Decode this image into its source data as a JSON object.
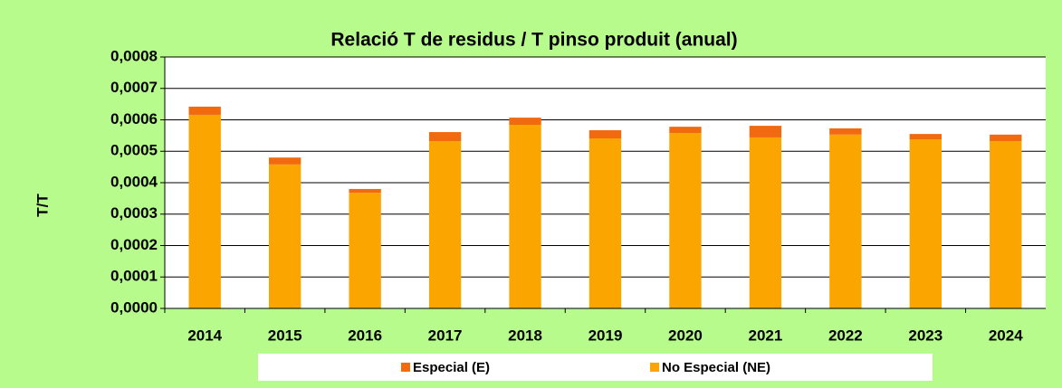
{
  "chart_data": {
    "type": "bar",
    "stacked": true,
    "title": "Relació T de residus / T pinso produit (anual)",
    "y_label": "T/T",
    "categories": [
      "2014",
      "2015",
      "2016",
      "2017",
      "2018",
      "2019",
      "2020",
      "2021",
      "2022",
      "2023",
      "2024"
    ],
    "series": [
      {
        "name": "Especial (E)",
        "color": "#f26a10",
        "values": [
          2.6e-05,
          2.2e-05,
          1.2e-05,
          2.9e-05,
          2.3e-05,
          2.6e-05,
          2e-05,
          3.7e-05,
          2e-05,
          1.7e-05,
          2.1e-05
        ]
      },
      {
        "name": "No Especial (NE)",
        "color": "#fba600",
        "values": [
          0.000616,
          0.000458,
          0.000368,
          0.000532,
          0.000584,
          0.000541,
          0.000558,
          0.000544,
          0.000553,
          0.000538,
          0.000532
        ]
      }
    ],
    "ylim": [
      0,
      0.0008
    ],
    "yticks": [
      {
        "value": 0,
        "label": "0,0000"
      },
      {
        "value": 0.0001,
        "label": "0,0001"
      },
      {
        "value": 0.0002,
        "label": "0,0002"
      },
      {
        "value": 0.0003,
        "label": "0,0003"
      },
      {
        "value": 0.0004,
        "label": "0,0004"
      },
      {
        "value": 0.0005,
        "label": "0,0005"
      },
      {
        "value": 0.0006,
        "label": "0,0006"
      },
      {
        "value": 0.0007,
        "label": "0,0007"
      },
      {
        "value": 0.0008,
        "label": "0,0008"
      }
    ],
    "grid": true,
    "legend": "bottom"
  }
}
